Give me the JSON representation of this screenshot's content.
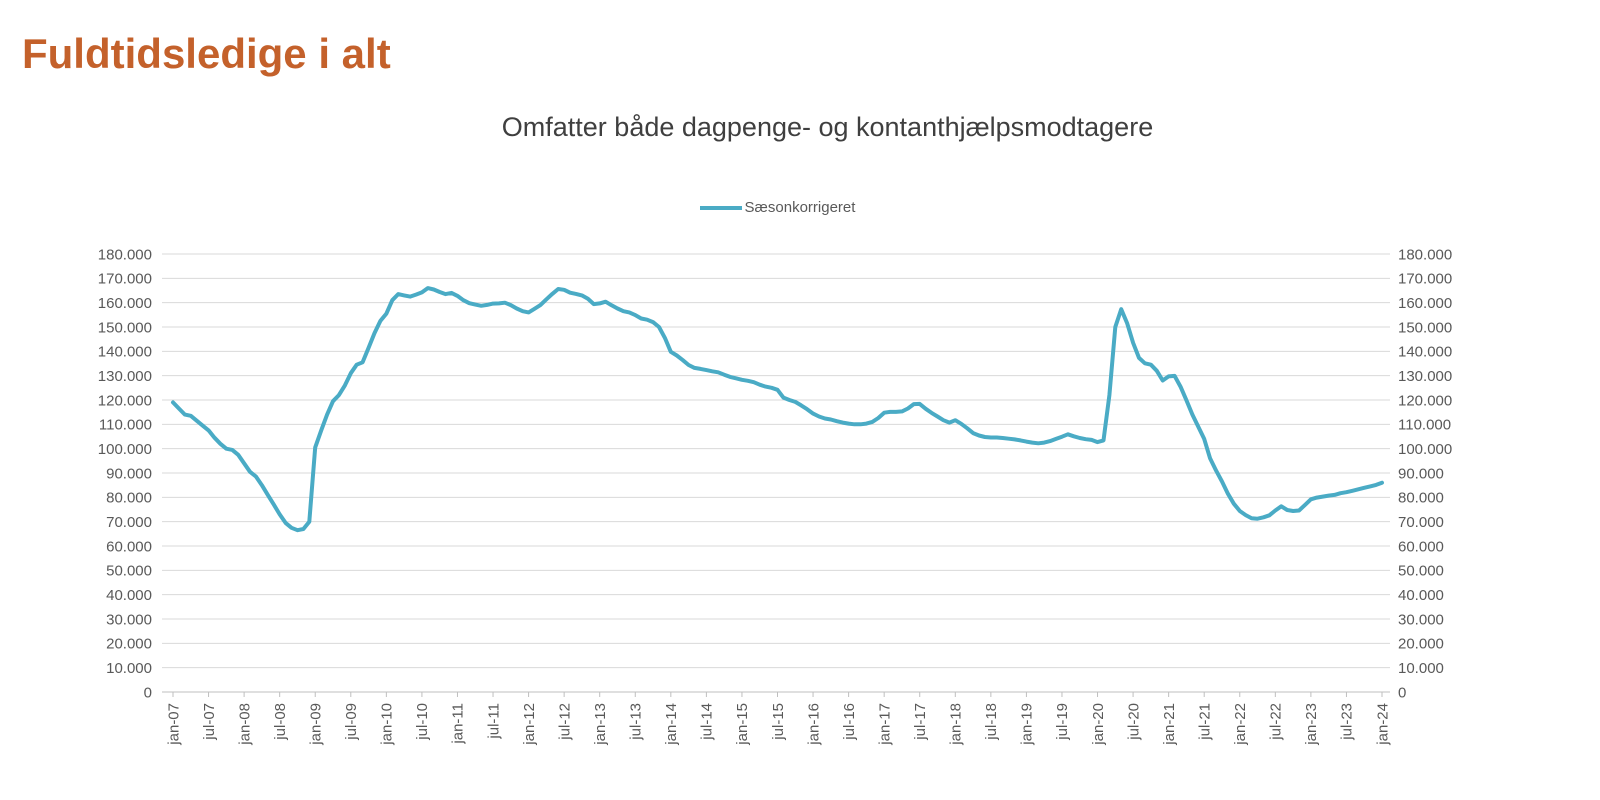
{
  "page": {
    "title": "Fuldtidsledige i alt",
    "title_color": "#C4612B"
  },
  "chart": {
    "subtitle": "Omfatter både dagpenge- og kontanthjælpsmodtagere",
    "legend_label": "Sæsonkorrigeret",
    "line_color": "#4AABC5",
    "gridline_color": "#D9D9D9",
    "axis_color": "#BFBFBF",
    "label_color": "#595959"
  },
  "chart_data": {
    "type": "line",
    "title": "Omfatter både dagpenge- og kontanthjælpsmodtagere",
    "xlabel": "",
    "ylabel": "",
    "ylim": [
      0,
      180000
    ],
    "ytick_step": 10000,
    "grid": true,
    "legend_position": "top-center",
    "dual_y_axis": true,
    "x_interval": "monthly",
    "x_range": [
      "jan-07",
      "jan-24"
    ],
    "x_tick_labels": [
      "jan-07",
      "jul-07",
      "jan-08",
      "jul-08",
      "jan-09",
      "jul-09",
      "jan-10",
      "jul-10",
      "jan-11",
      "jul-11",
      "jan-12",
      "jul-12",
      "jan-13",
      "jul-13",
      "jan-14",
      "jul-14",
      "jan-15",
      "jul-15",
      "jan-16",
      "jul-16",
      "jan-17",
      "jul-17",
      "jan-18",
      "jul-18",
      "jan-19",
      "jul-19",
      "jan-20",
      "jul-20",
      "jan-21",
      "jul-21",
      "jan-22",
      "jul-22",
      "jan-23",
      "jul-23",
      "jan-24"
    ],
    "series": [
      {
        "name": "Sæsonkorrigeret",
        "color": "#4AABC5",
        "values": [
          119000,
          116500,
          114000,
          113500,
          111500,
          109500,
          107500,
          104500,
          102000,
          100000,
          99500,
          97500,
          94000,
          90500,
          88500,
          85000,
          81000,
          77000,
          73000,
          69500,
          67500,
          66500,
          67000,
          70000,
          100500,
          107500,
          114000,
          119500,
          122000,
          126000,
          131000,
          134500,
          135500,
          141500,
          147500,
          152500,
          155500,
          161000,
          163500,
          163000,
          162500,
          163300,
          164200,
          166000,
          165400,
          164400,
          163500,
          164000,
          162800,
          161000,
          159800,
          159200,
          158700,
          159100,
          159600,
          159700,
          160000,
          159000,
          157600,
          156500,
          156000,
          157500,
          159000,
          161400,
          163600,
          165600,
          165300,
          164100,
          163600,
          163000,
          161600,
          159400,
          159700,
          160400,
          158900,
          157600,
          156500,
          156000,
          154900,
          153500,
          153000,
          152000,
          150000,
          145500,
          139800,
          138300,
          136400,
          134400,
          133200,
          132800,
          132300,
          131800,
          131400,
          130400,
          129500,
          128900,
          128300,
          127900,
          127300,
          126300,
          125500,
          125000,
          124200,
          121000,
          120000,
          119200,
          117800,
          116200,
          114400,
          113200,
          112400,
          112000,
          111300,
          110700,
          110300,
          110000,
          110000,
          110300,
          111000,
          112600,
          114800,
          115100,
          115100,
          115300,
          116500,
          118300,
          118400,
          116400,
          114700,
          113200,
          111700,
          110700,
          111700,
          110200,
          108400,
          106400,
          105400,
          104800,
          104600,
          104600,
          104400,
          104100,
          103800,
          103400,
          102900,
          102500,
          102200,
          102500,
          103100,
          104000,
          104900,
          105900,
          105100,
          104400,
          103900,
          103600,
          102700,
          103400,
          122000,
          150000,
          157300,
          151500,
          143500,
          137300,
          135100,
          134500,
          132000,
          128000,
          129700,
          129900,
          125500,
          119900,
          114000,
          109000,
          104000,
          96000,
          91000,
          86500,
          81500,
          77400,
          74400,
          72700,
          71400,
          71200,
          71800,
          72600,
          74600,
          76300,
          74800,
          74400,
          74600,
          76900,
          79200,
          79900,
          80300,
          80700,
          81000,
          81700,
          82100,
          82700,
          83300,
          83900,
          84500,
          85100,
          86000
        ]
      }
    ]
  }
}
